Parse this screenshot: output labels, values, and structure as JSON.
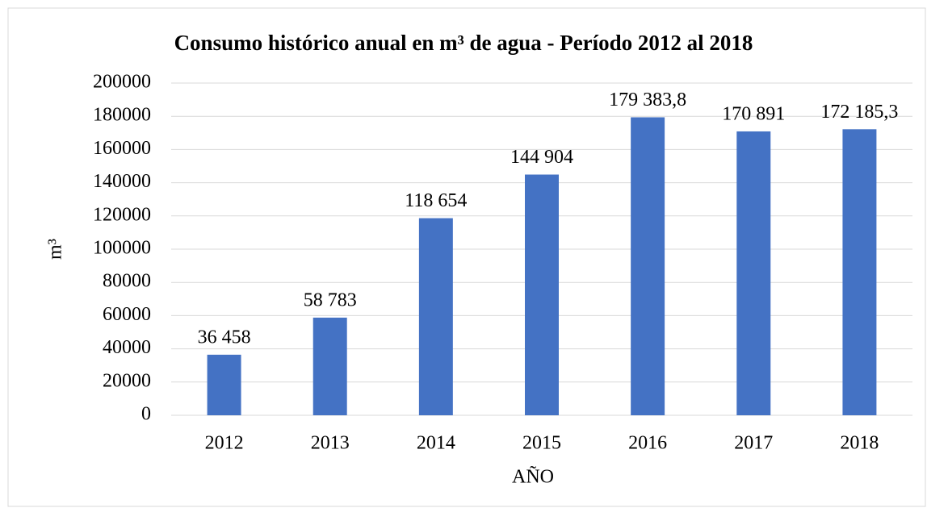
{
  "chart_data": {
    "type": "bar",
    "title": "Consumo histórico anual en m³ de agua - Período 2012 al 2018",
    "x_label": "AÑO",
    "y_label": "m³",
    "categories": [
      "2012",
      "2013",
      "2014",
      "2015",
      "2016",
      "2017",
      "2018"
    ],
    "values": [
      36458,
      58783,
      118654,
      144904,
      179383.8,
      170891,
      172185.3
    ],
    "value_labels": [
      "36 458",
      "58 783",
      "118 654",
      "144 904",
      "179 383,8",
      "170 891",
      "172 185,3"
    ],
    "color": "#4472c4",
    "ylim": [
      0,
      200000
    ],
    "yticks": [
      0,
      20000,
      40000,
      60000,
      80000,
      100000,
      120000,
      140000,
      160000,
      180000,
      200000
    ],
    "grid": true
  }
}
